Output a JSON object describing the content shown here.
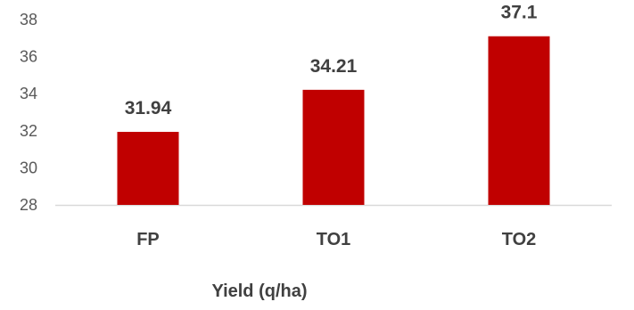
{
  "chart_data": {
    "type": "bar",
    "categories": [
      "FP",
      "TO1",
      "TO2"
    ],
    "values": [
      31.94,
      34.21,
      37.1
    ],
    "data_labels": [
      "31.94",
      "34.21",
      "37.1"
    ],
    "xlabel": "Yield (q/ha)",
    "ylabel": "",
    "ylim": [
      28,
      38
    ],
    "yticks": [
      28,
      30,
      32,
      34,
      36,
      38
    ],
    "grid": false,
    "legend": "none",
    "bar_color": "#C00000"
  }
}
